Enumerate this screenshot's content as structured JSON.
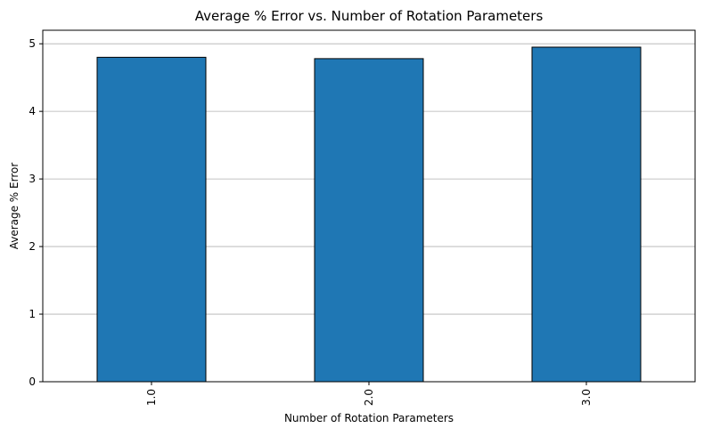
{
  "chart_data": {
    "type": "bar",
    "title": "Average % Error vs. Number of Rotation Parameters",
    "xlabel": "Number of Rotation Parameters",
    "ylabel": "Average % Error",
    "categories": [
      "1.0",
      "2.0",
      "3.0"
    ],
    "values": [
      4.8,
      4.78,
      4.95
    ],
    "ylim": [
      0,
      5.2
    ],
    "yticks": [
      "0",
      "1",
      "2",
      "3",
      "4",
      "5"
    ],
    "grid": "y-axis only",
    "colors": {
      "bar": "#1f77b4",
      "bar_edge": "#000000",
      "grid": "#b0b0b0"
    }
  }
}
